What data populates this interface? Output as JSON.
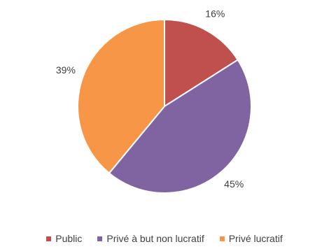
{
  "chart_data": {
    "type": "pie",
    "categories": [
      "Public",
      "Privé à but non lucratif",
      "Privé lucratif"
    ],
    "values": [
      16,
      45,
      39
    ],
    "labels": [
      "16%",
      "45%",
      "39%"
    ],
    "colors": [
      "#C0504D",
      "#8064A2",
      "#F79646"
    ],
    "start_angle": "12 o'clock",
    "direction": "clockwise",
    "legend_position": "bottom"
  }
}
